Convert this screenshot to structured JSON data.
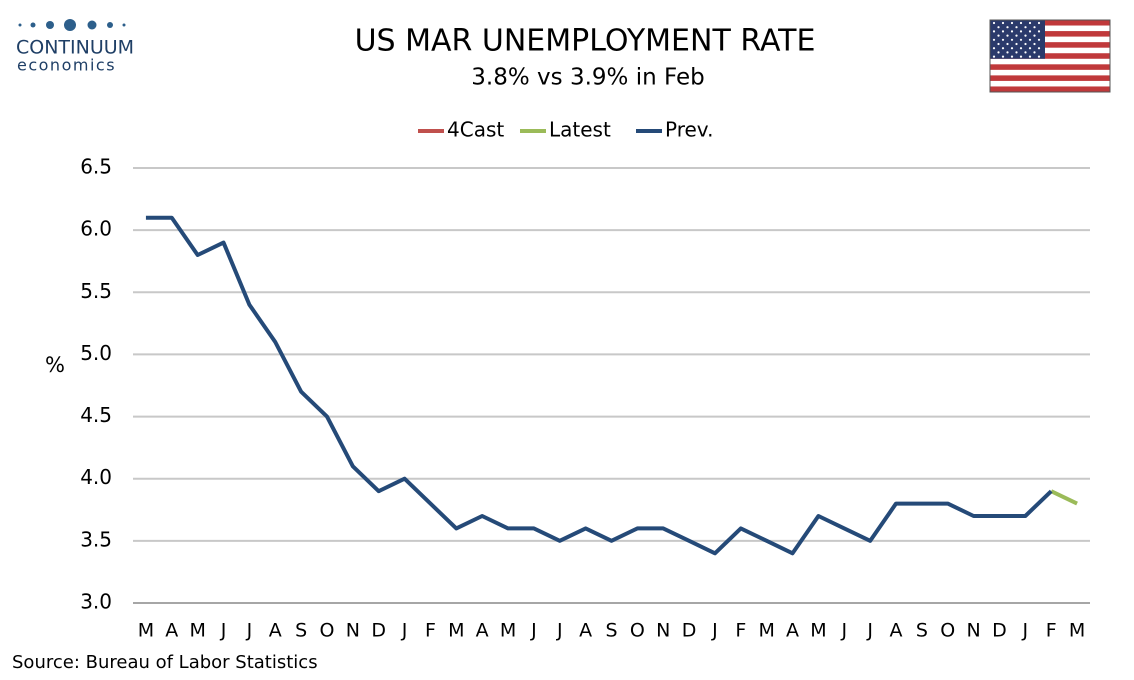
{
  "brand": {
    "name": "CONTINUUM",
    "tagline": "economics"
  },
  "source": "Source: Bureau of Labor Statistics",
  "chart_data": {
    "type": "line",
    "title": "US MAR UNEMPLOYMENT RATE",
    "subtitle": "3.8% vs 3.9% in Feb",
    "y_label": "%",
    "categories": [
      "M",
      "A",
      "M",
      "J",
      "J",
      "A",
      "S",
      "O",
      "N",
      "D",
      "J",
      "F",
      "M",
      "A",
      "M",
      "J",
      "J",
      "A",
      "S",
      "O",
      "N",
      "D",
      "J",
      "F",
      "M",
      "A",
      "M",
      "J",
      "J",
      "A",
      "S",
      "O",
      "N",
      "D",
      "J",
      "F",
      "M"
    ],
    "series": [
      {
        "name": "4Cast",
        "color": "#c0504d",
        "values": [
          null,
          null,
          null,
          null,
          null,
          null,
          null,
          null,
          null,
          null,
          null,
          null,
          null,
          null,
          null,
          null,
          null,
          null,
          null,
          null,
          null,
          null,
          null,
          null,
          null,
          null,
          null,
          null,
          null,
          null,
          null,
          null,
          null,
          null,
          null,
          null,
          null
        ]
      },
      {
        "name": "Latest",
        "color": "#9bbb59",
        "values": [
          null,
          null,
          null,
          null,
          null,
          null,
          null,
          null,
          null,
          null,
          null,
          null,
          null,
          null,
          null,
          null,
          null,
          null,
          null,
          null,
          null,
          null,
          null,
          null,
          null,
          null,
          null,
          null,
          null,
          null,
          null,
          null,
          null,
          null,
          null,
          3.9,
          3.8
        ]
      },
      {
        "name": "Prev.",
        "color": "#254a78",
        "values": [
          6.1,
          6.1,
          5.8,
          5.9,
          5.4,
          5.1,
          4.7,
          4.5,
          4.1,
          3.9,
          4.0,
          3.8,
          3.6,
          3.7,
          3.6,
          3.6,
          3.5,
          3.6,
          3.5,
          3.6,
          3.6,
          3.5,
          3.4,
          3.6,
          3.5,
          3.4,
          3.7,
          3.6,
          3.5,
          3.8,
          3.8,
          3.8,
          3.7,
          3.7,
          3.7,
          3.9,
          null
        ]
      }
    ],
    "ylim": [
      3.0,
      6.5
    ],
    "yticks": [
      {
        "value": 3,
        "label": "3.0"
      },
      3.5,
      {
        "value": 4,
        "label": "4.0"
      },
      4.5,
      {
        "value": 5,
        "label": "5.0"
      },
      5.5,
      {
        "value": 6,
        "label": "6.0"
      },
      6.5
    ],
    "grid": true,
    "legend": "top"
  }
}
